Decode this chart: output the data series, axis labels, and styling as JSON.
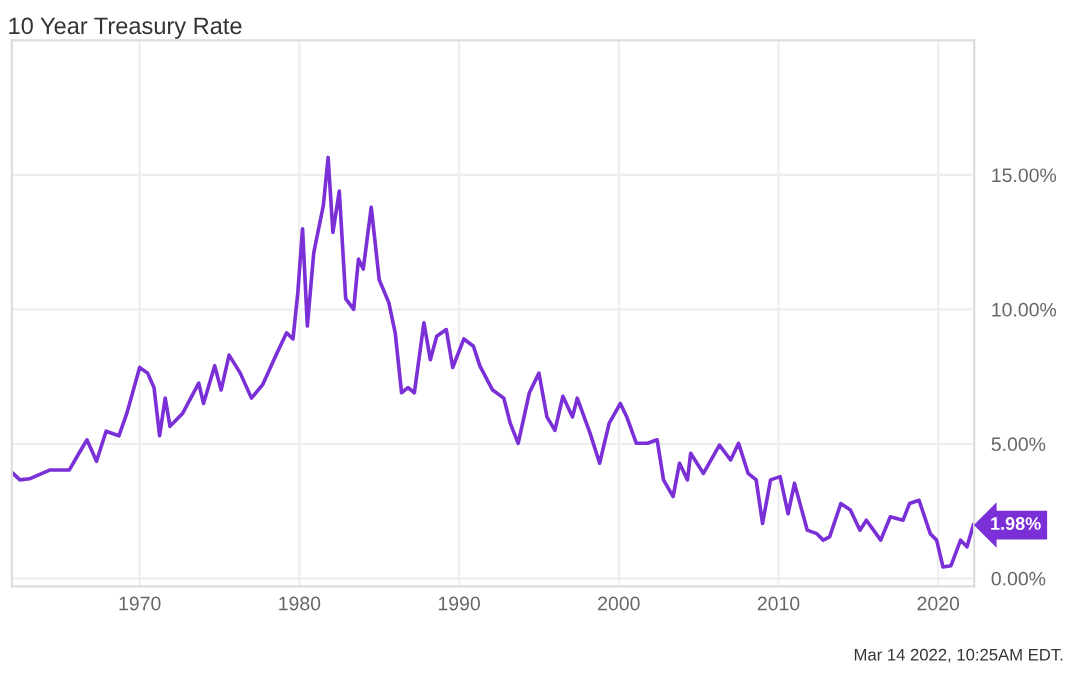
{
  "chart_data": {
    "type": "line",
    "title": "10 Year Treasury Rate",
    "x": [
      1962.07,
      1962.5,
      1963.1,
      1964.4,
      1965.6,
      1966.2,
      1966.7,
      1967.3,
      1967.9,
      1968.7,
      1969.2,
      1970.0,
      1970.5,
      1970.9,
      1971.25,
      1971.6,
      1971.9,
      1972.7,
      1973.7,
      1974.0,
      1974.7,
      1975.1,
      1975.6,
      1976.3,
      1977.0,
      1977.7,
      1978.6,
      1979.2,
      1979.6,
      1979.9,
      1980.2,
      1980.5,
      1980.9,
      1981.5,
      1981.8,
      1982.1,
      1982.5,
      1982.9,
      1983.4,
      1983.7,
      1984.0,
      1984.5,
      1985.0,
      1985.6,
      1986.0,
      1986.4,
      1986.8,
      1987.2,
      1987.8,
      1988.2,
      1988.6,
      1989.2,
      1989.6,
      1990.3,
      1990.9,
      1991.3,
      1992.1,
      1992.8,
      1993.2,
      1993.7,
      1994.4,
      1995.0,
      1995.5,
      1996.0,
      1996.5,
      1997.1,
      1997.4,
      1998.2,
      1998.8,
      1999.4,
      2000.1,
      2000.5,
      2001.1,
      2001.8,
      2002.4,
      2002.8,
      2003.4,
      2003.8,
      2004.3,
      2004.5,
      2005.3,
      2006.3,
      2007.0,
      2007.5,
      2008.1,
      2008.6,
      2009.0,
      2009.5,
      2010.1,
      2010.6,
      2011.0,
      2011.8,
      2012.4,
      2012.8,
      2013.2,
      2013.9,
      2014.5,
      2015.1,
      2015.5,
      2016.4,
      2017.0,
      2017.8,
      2018.2,
      2018.8,
      2019.5,
      2019.9,
      2020.3,
      2020.8,
      2021.4,
      2021.8,
      2022.2
    ],
    "series": [
      {
        "color": "#7b2fd6",
        "values": [
          3.9,
          3.66,
          3.7,
          4.03,
          4.03,
          4.65,
          5.15,
          4.35,
          5.47,
          5.3,
          6.14,
          7.84,
          7.63,
          7.09,
          5.3,
          6.7,
          5.65,
          6.14,
          7.26,
          6.5,
          7.9,
          7.0,
          8.3,
          7.63,
          6.7,
          7.2,
          8.38,
          9.13,
          8.9,
          10.6,
          13.0,
          9.38,
          12.1,
          13.86,
          15.65,
          12.86,
          14.4,
          10.4,
          10.0,
          11.87,
          11.5,
          13.8,
          11.1,
          10.25,
          9.13,
          6.9,
          7.09,
          6.9,
          9.5,
          8.13,
          9.0,
          9.25,
          7.84,
          8.9,
          8.63,
          7.9,
          7.0,
          6.7,
          5.77,
          5.02,
          6.9,
          7.63,
          6.0,
          5.5,
          6.77,
          6.0,
          6.7,
          5.4,
          4.28,
          5.77,
          6.5,
          6.0,
          5.02,
          5.02,
          5.15,
          3.66,
          3.04,
          4.28,
          3.66,
          4.65,
          3.9,
          4.95,
          4.4,
          5.02,
          3.9,
          3.66,
          2.04,
          3.66,
          3.78,
          2.4,
          3.53,
          1.79,
          1.66,
          1.42,
          1.54,
          2.78,
          2.54,
          1.79,
          2.16,
          1.42,
          2.29,
          2.16,
          2.78,
          2.9,
          1.66,
          1.42,
          0.42,
          0.47,
          1.42,
          1.17,
          1.98
        ]
      }
    ],
    "xlim": [
      1962,
      2022.25
    ],
    "xticks": [
      1970,
      1980,
      1990,
      2000,
      2010,
      2020
    ],
    "ylim": [
      -0.3,
      20
    ],
    "yticks": [
      {
        "value": 0,
        "label": "0.00%"
      },
      {
        "value": 5,
        "label": "5.00%"
      },
      {
        "value": 10,
        "label": "10.00%"
      },
      {
        "value": 15,
        "label": "15.00%"
      }
    ],
    "grid": true,
    "marker": "none",
    "line_style": "solid",
    "annotations": [
      {
        "text": "1.98%",
        "x": 2022.2,
        "y": 1.98
      },
      "Mar 14 2022, 10:25AM EDT."
    ]
  }
}
